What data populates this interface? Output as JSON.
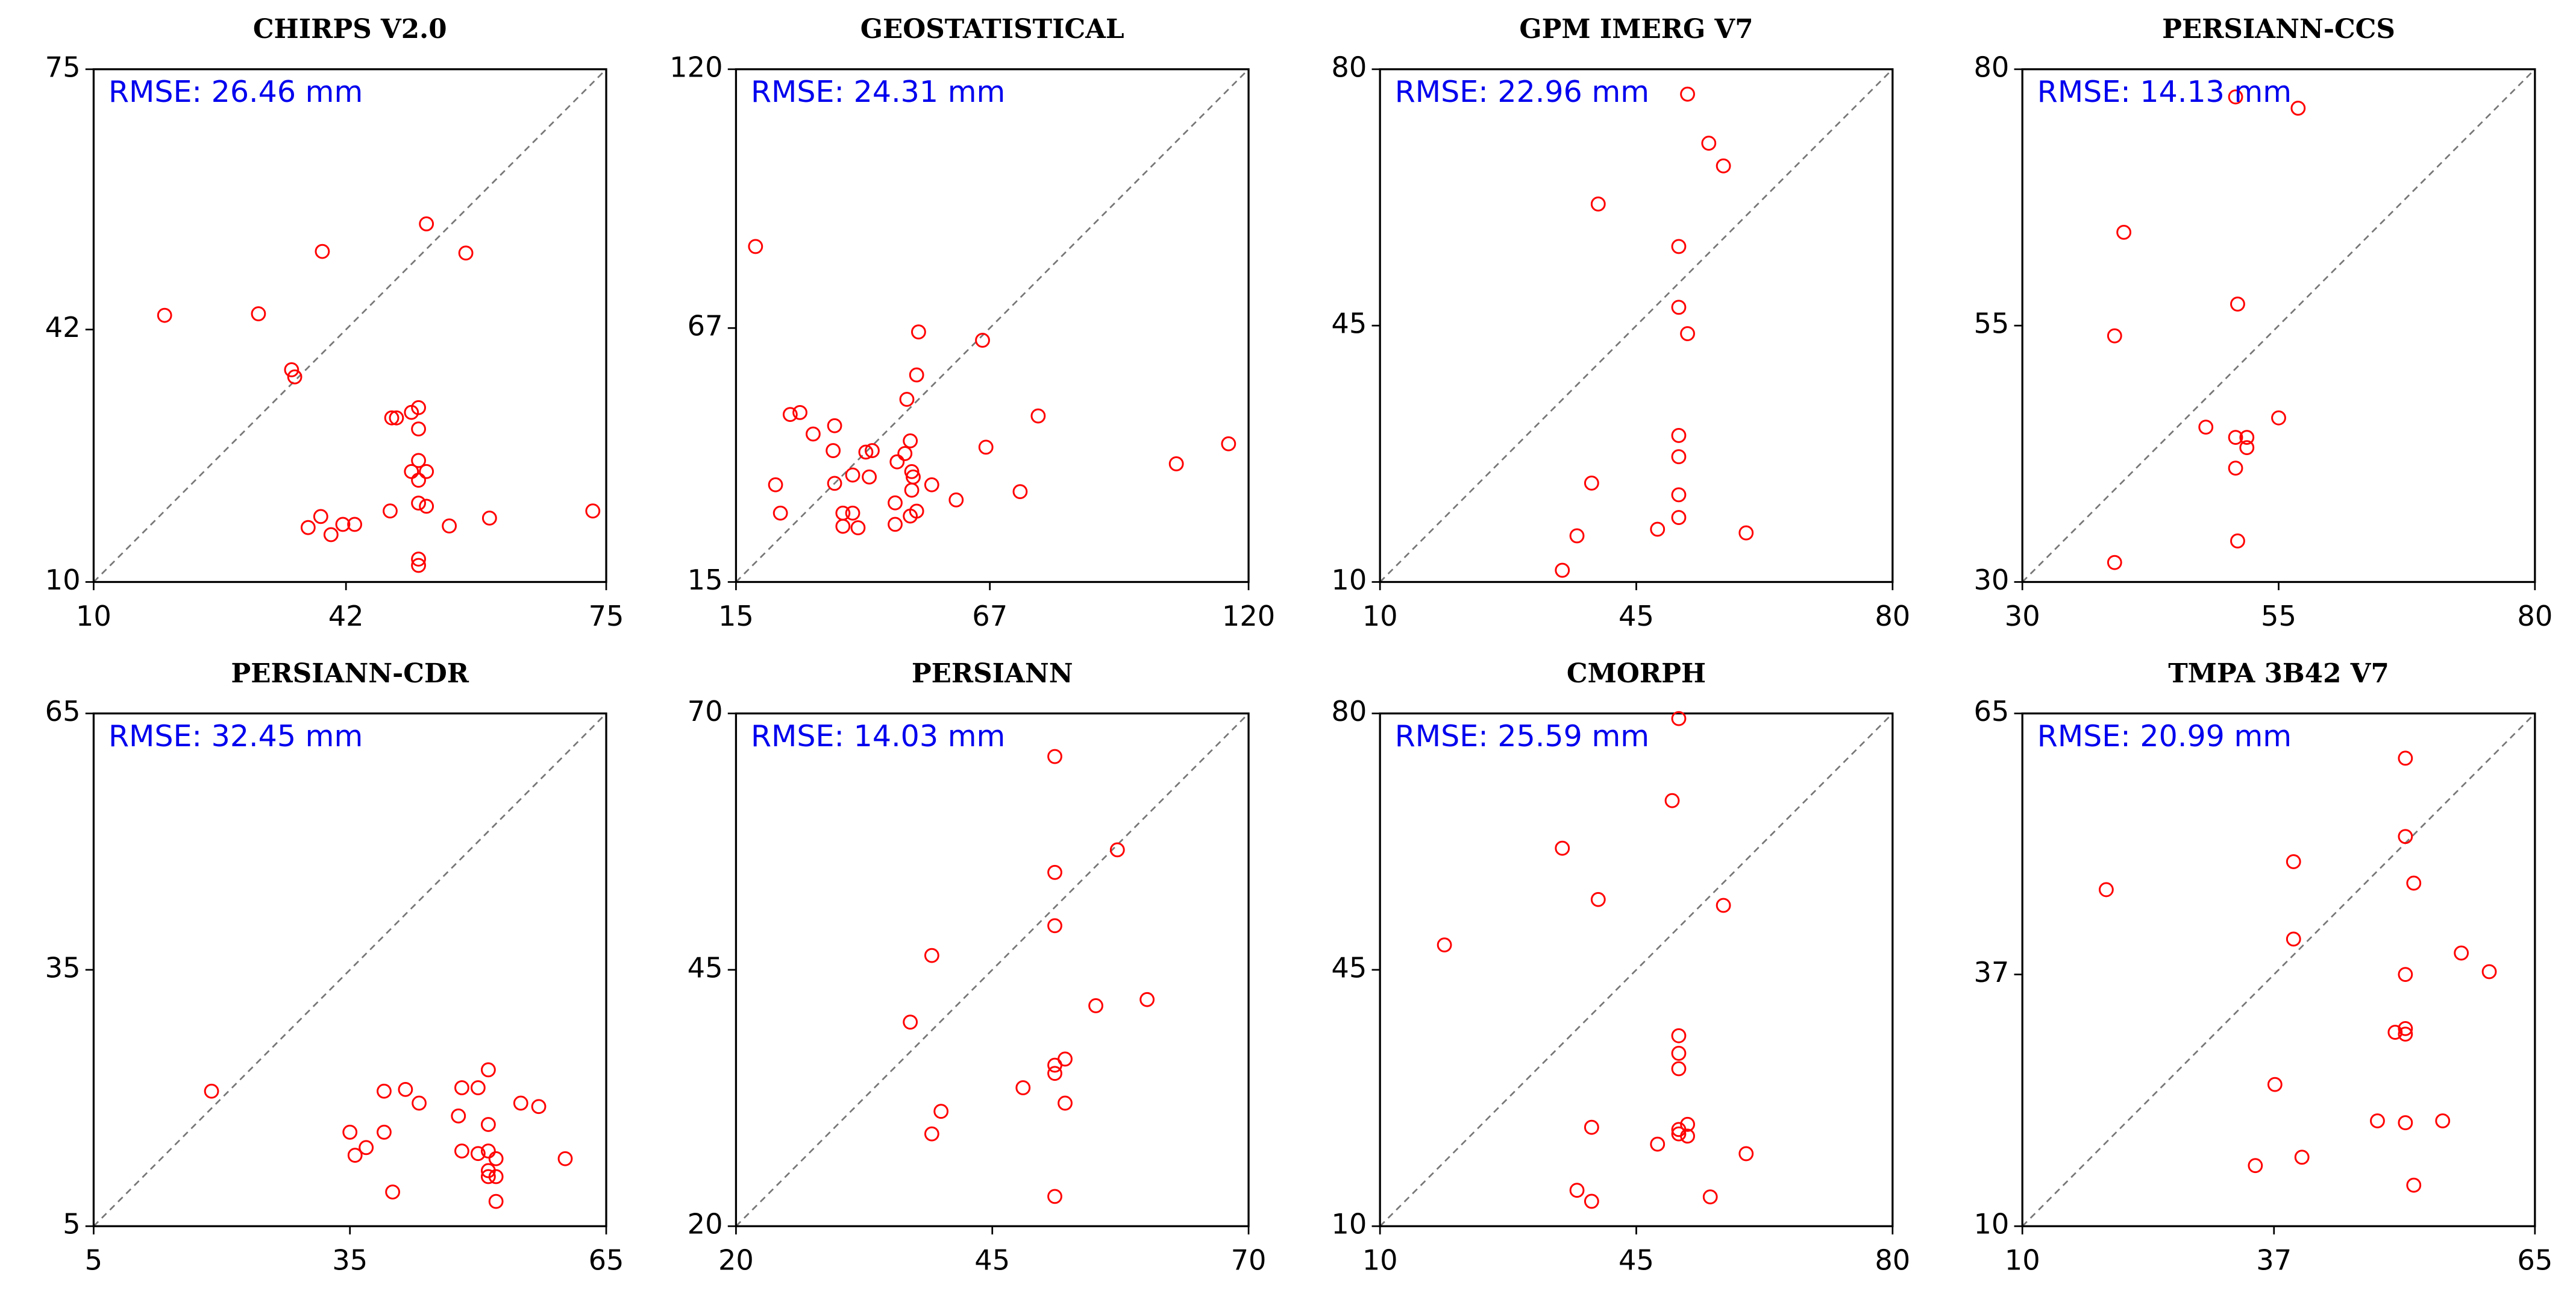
{
  "chart_data": [
    {
      "type": "scatter",
      "title": "CHIRPS V2.0",
      "annotation": "RMSE: 26.46 mm",
      "color": "red",
      "xlim": [
        10,
        75
      ],
      "ylim": [
        10,
        75
      ],
      "xticks": [
        10,
        42,
        75
      ],
      "yticks": [
        10,
        42,
        75
      ],
      "x": [
        19.0,
        30.9,
        39.0,
        52.2,
        57.2,
        35.1,
        35.5,
        47.8,
        48.4,
        50.3,
        51.2,
        51.2,
        51.2,
        50.3,
        52.2,
        51.2,
        51.2,
        52.2,
        47.6,
        38.8,
        37.2,
        40.1,
        41.6,
        43.1,
        55.1,
        60.2,
        73.3,
        51.2,
        51.2
      ],
      "values": [
        43.8,
        44.0,
        51.9,
        55.4,
        51.7,
        36.9,
        36.0,
        30.8,
        30.8,
        31.5,
        32.1,
        29.4,
        25.4,
        24.0,
        24.0,
        22.9,
        20.0,
        19.6,
        19.0,
        18.3,
        16.9,
        16.0,
        17.3,
        17.3,
        17.1,
        18.1,
        19.0,
        12.9,
        12.1
      ]
    },
    {
      "type": "scatter",
      "title": "GEOSTATISTICAL",
      "annotation": "RMSE: 24.31 mm",
      "color": "red",
      "xlim": [
        15,
        120
      ],
      "ylim": [
        15,
        120
      ],
      "xticks": [
        15,
        67,
        120
      ],
      "yticks": [
        15,
        67,
        120
      ],
      "x": [
        19.0,
        26.1,
        28.1,
        30.8,
        35.2,
        34.9,
        23.1,
        24.1,
        35.2,
        38.9,
        41.6,
        42.9,
        42.3,
        36.9,
        38.9,
        36.9,
        40.0,
        47.6,
        47.6,
        48.0,
        49.6,
        50.7,
        50.0,
        51.0,
        51.3,
        51.0,
        50.7,
        52.0,
        52.0,
        52.4,
        55.1,
        60.1,
        65.5,
        66.2,
        73.2,
        76.9,
        105.2,
        115.9
      ],
      "values": [
        83.7,
        49.3,
        49.7,
        45.3,
        47.0,
        41.9,
        34.9,
        29.1,
        35.2,
        36.9,
        41.6,
        41.9,
        36.5,
        29.1,
        29.1,
        26.4,
        26.1,
        26.8,
        31.2,
        39.6,
        41.3,
        43.9,
        52.4,
        37.6,
        36.5,
        33.8,
        28.5,
        29.5,
        57.4,
        66.2,
        34.9,
        31.8,
        64.5,
        42.6,
        33.5,
        49.0,
        39.2,
        43.3
      ]
    },
    {
      "type": "scatter",
      "title": "GPM IMERG V7",
      "annotation": "RMSE: 22.96 mm",
      "color": "red",
      "xlim": [
        10,
        80
      ],
      "ylim": [
        10,
        80
      ],
      "xticks": [
        10,
        45,
        80
      ],
      "yticks": [
        10,
        45,
        80
      ],
      "x": [
        52.0,
        54.9,
        56.9,
        39.8,
        50.8,
        50.8,
        52.0,
        50.8,
        50.8,
        38.9,
        50.8,
        50.8,
        47.9,
        36.9,
        60.0,
        34.9
      ],
      "values": [
        76.6,
        69.9,
        66.8,
        61.6,
        55.8,
        47.5,
        43.9,
        30.0,
        27.1,
        23.5,
        21.9,
        18.8,
        17.2,
        16.3,
        16.7,
        11.6
      ]
    },
    {
      "type": "scatter",
      "title": "PERSIANN-CCS",
      "annotation": "RMSE: 14.13 mm",
      "color": "red",
      "xlim": [
        30,
        80
      ],
      "ylim": [
        30,
        80
      ],
      "xticks": [
        30,
        55,
        80
      ],
      "yticks": [
        30,
        55,
        80
      ],
      "x": [
        50.8,
        56.9,
        39.9,
        51.0,
        39.0,
        55.0,
        47.9,
        50.8,
        51.9,
        51.9,
        50.8,
        51.0,
        39.0
      ],
      "values": [
        77.3,
        76.2,
        64.1,
        57.1,
        54.0,
        46.0,
        45.1,
        44.1,
        44.1,
        43.1,
        41.1,
        34.0,
        31.9
      ]
    },
    {
      "type": "scatter",
      "title": "PERSIANN-CDR",
      "annotation": "RMSE: 32.45 mm",
      "color": "red",
      "xlim": [
        5,
        65
      ],
      "ylim": [
        5,
        65
      ],
      "xticks": [
        5,
        35,
        65
      ],
      "yticks": [
        5,
        35,
        65
      ],
      "x": [
        18.8,
        39.0,
        41.5,
        48.1,
        50.0,
        51.2,
        43.1,
        55.0,
        57.1,
        35.0,
        39.0,
        47.7,
        51.2,
        36.9,
        35.6,
        48.1,
        50.0,
        51.2,
        52.1,
        51.2,
        52.1,
        51.2,
        60.2,
        40.0,
        52.1
      ],
      "values": [
        20.8,
        20.8,
        21.0,
        21.2,
        21.2,
        23.3,
        19.4,
        19.4,
        19.0,
        16.0,
        16.0,
        17.9,
        16.9,
        14.2,
        13.3,
        13.8,
        13.5,
        13.8,
        12.9,
        11.5,
        10.8,
        10.8,
        12.9,
        9.0,
        7.9
      ]
    },
    {
      "type": "scatter",
      "title": "PERSIANN",
      "annotation": "RMSE: 14.03 mm",
      "color": "red",
      "xlim": [
        20,
        70
      ],
      "ylim": [
        20,
        70
      ],
      "xticks": [
        20,
        45,
        70
      ],
      "yticks": [
        20,
        45,
        70
      ],
      "x": [
        51.1,
        51.1,
        57.2,
        39.1,
        51.1,
        60.1,
        55.1,
        37.0,
        52.1,
        51.1,
        51.1,
        48.0,
        40.0,
        52.1,
        39.1,
        51.1
      ],
      "values": [
        65.8,
        54.5,
        56.7,
        46.4,
        49.3,
        42.1,
        41.5,
        39.9,
        36.3,
        35.7,
        34.9,
        33.5,
        31.2,
        32.0,
        29.0,
        22.9
      ]
    },
    {
      "type": "scatter",
      "title": "CMORPH",
      "annotation": "RMSE: 25.59 mm",
      "color": "red",
      "xlim": [
        10,
        80
      ],
      "ylim": [
        10,
        80
      ],
      "xticks": [
        10,
        45,
        80
      ],
      "yticks": [
        10,
        45,
        80
      ],
      "x": [
        50.8,
        49.9,
        34.9,
        39.8,
        56.9,
        18.8,
        50.8,
        50.8,
        50.8,
        38.9,
        52.0,
        50.8,
        50.8,
        52.0,
        47.9,
        60.0,
        36.9,
        38.9,
        55.1
      ],
      "values": [
        79.3,
        68.1,
        61.6,
        54.6,
        53.8,
        48.4,
        36.0,
        33.6,
        31.5,
        23.5,
        23.9,
        23.2,
        22.6,
        22.3,
        21.2,
        19.9,
        14.9,
        13.4,
        14.0
      ]
    },
    {
      "type": "scatter",
      "title": "TMPA 3B42 V7",
      "annotation": "RMSE: 20.99 mm",
      "color": "red",
      "xlim": [
        10,
        65
      ],
      "ylim": [
        10,
        65
      ],
      "xticks": [
        10,
        37,
        65
      ],
      "yticks": [
        10,
        37,
        65
      ],
      "x": [
        51.1,
        51.1,
        39.1,
        52.0,
        19.0,
        39.1,
        57.1,
        60.1,
        51.1,
        50.0,
        51.1,
        51.1,
        37.1,
        48.1,
        51.1,
        55.1,
        40.0,
        35.0,
        52.0
      ],
      "values": [
        60.2,
        51.8,
        49.1,
        46.8,
        46.1,
        40.8,
        39.3,
        37.3,
        37.0,
        30.8,
        31.2,
        30.6,
        25.2,
        21.3,
        21.1,
        21.3,
        17.4,
        16.5,
        14.4
      ]
    }
  ]
}
